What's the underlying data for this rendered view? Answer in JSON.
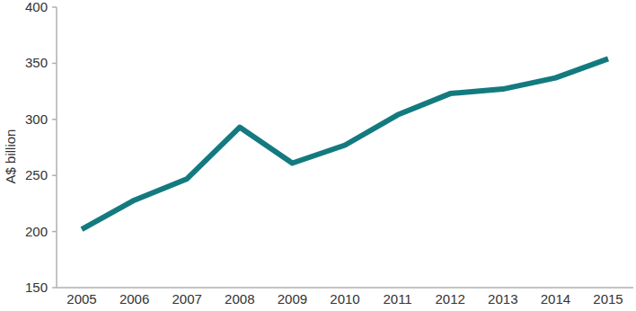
{
  "chart_data": {
    "type": "line",
    "y_label": "A$ billion",
    "categories": [
      "2005",
      "2006",
      "2007",
      "2008",
      "2009",
      "2010",
      "2011",
      "2012",
      "2013",
      "2014",
      "2015"
    ],
    "values": [
      202,
      228,
      247,
      293,
      261,
      277,
      304,
      323,
      327,
      337,
      354
    ],
    "color": "#137a7f",
    "ylim": [
      150,
      400
    ],
    "yticks": [
      150,
      200,
      250,
      300,
      350,
      400
    ],
    "grid": false
  }
}
